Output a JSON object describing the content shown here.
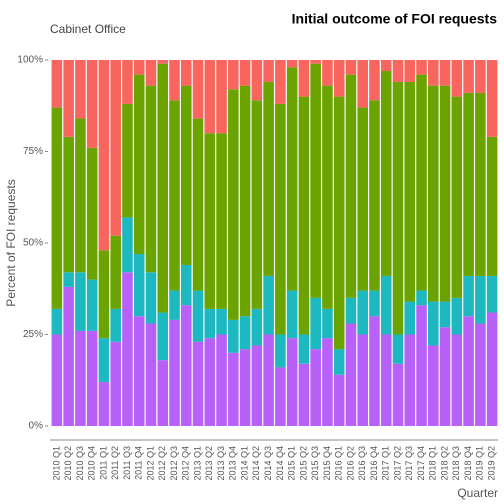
{
  "chart_data": {
    "type": "stacked_bar",
    "title": "Initial outcome of FOI requests",
    "subtitle": "Cabinet Office",
    "y_label": "Percent of FOI requests",
    "x_label": "Quarter",
    "categories": [
      "2010 Q1",
      "2010 Q2",
      "2010 Q3",
      "2010 Q4",
      "2011 Q1",
      "2011 Q2",
      "2011 Q3",
      "2011 Q4",
      "2012 Q1",
      "2012 Q2",
      "2012 Q3",
      "2012 Q4",
      "2013 Q1",
      "2013 Q2",
      "2013 Q3",
      "2013 Q4",
      "2014 Q1",
      "2014 Q2",
      "2014 Q3",
      "2014 Q4",
      "2015 Q1",
      "2015 Q2",
      "2015 Q3",
      "2015 Q4",
      "2016 Q1",
      "2016 Q2",
      "2016 Q3",
      "2016 Q4",
      "2017 Q1",
      "2017 Q2",
      "2017 Q3",
      "2017 Q4",
      "2018 Q1",
      "2018 Q2",
      "2018 Q3",
      "2018 Q4",
      "2019 Q1",
      "2019 Q2"
    ],
    "series": [
      {
        "color": "#B861F8",
        "values": [
          25,
          38,
          26,
          26,
          12,
          23,
          42,
          30,
          28,
          18,
          29,
          33,
          23,
          24,
          25,
          20,
          21,
          22,
          25,
          16,
          24,
          17,
          21,
          24,
          14,
          28,
          25,
          30,
          25,
          17,
          25,
          33,
          22,
          27,
          25,
          30,
          28,
          31
        ]
      },
      {
        "color": "#1DB8C0",
        "values": [
          7,
          4,
          16,
          14,
          12,
          9,
          15,
          17,
          14,
          13,
          8,
          11,
          14,
          8,
          7,
          9,
          9,
          10,
          16,
          9,
          13,
          8,
          14,
          8,
          7,
          7,
          12,
          7,
          16,
          8,
          9,
          4,
          12,
          7,
          10,
          11,
          13,
          10
        ]
      },
      {
        "color": "#6BA300",
        "values": [
          55,
          37,
          42,
          36,
          24,
          20,
          31,
          49,
          51,
          68,
          52,
          49,
          47,
          48,
          48,
          63,
          63,
          57,
          53,
          63,
          61,
          65,
          64,
          61,
          69,
          61,
          50,
          52,
          56,
          69,
          60,
          59,
          59,
          59,
          55,
          50,
          50,
          38
        ]
      },
      {
        "color": "#F8665F",
        "values": [
          13,
          21,
          16,
          24,
          52,
          48,
          12,
          4,
          7,
          1,
          11,
          7,
          16,
          20,
          20,
          8,
          7,
          11,
          6,
          12,
          2,
          10,
          1,
          7,
          10,
          4,
          13,
          11,
          3,
          6,
          6,
          4,
          7,
          7,
          10,
          9,
          9,
          21
        ]
      }
    ],
    "ylim": [
      0,
      100
    ],
    "yticks": [
      {
        "value": 0,
        "label": "0%"
      },
      {
        "value": 25,
        "label": "25%"
      },
      {
        "value": 50,
        "label": "50%"
      },
      {
        "value": 75,
        "label": "75%"
      },
      {
        "value": 100,
        "label": "100%"
      }
    ]
  }
}
